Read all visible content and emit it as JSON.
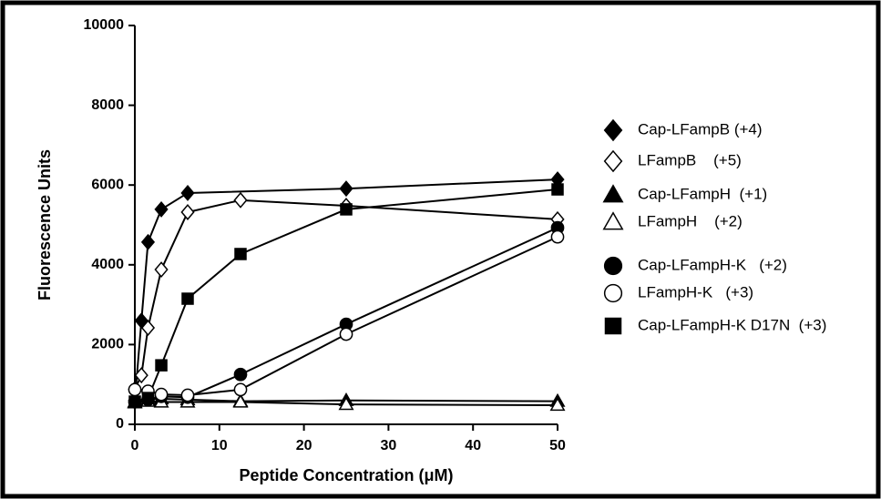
{
  "chart_data": {
    "type": "line",
    "xlabel": "Peptide Concentration (μM)",
    "ylabel": "Fluorescence Units",
    "xlim": [
      0,
      50
    ],
    "xticks": [
      0,
      10,
      20,
      30,
      40,
      50
    ],
    "ylim": [
      0,
      10000
    ],
    "yticks": [
      0,
      2000,
      4000,
      6000,
      8000,
      10000
    ],
    "legend": "right",
    "series": [
      {
        "name": "Cap-LFampB (+4)",
        "color": "#000000",
        "marker": "diamond",
        "marker_fill": "#000000",
        "x": [
          0,
          0.78,
          1.56,
          3.13,
          6.25,
          25,
          50
        ],
        "values": [
          600,
          2600,
          4570,
          5390,
          5800,
          5910,
          6140
        ]
      },
      {
        "name": "LFampB    (+5)",
        "color": "#000000",
        "marker": "diamond",
        "marker_fill": "#ffffff",
        "x": [
          0,
          0.78,
          1.56,
          3.13,
          6.25,
          12.5,
          25,
          50
        ],
        "values": [
          880,
          1230,
          2420,
          3880,
          5320,
          5620,
          5480,
          5140
        ]
      },
      {
        "name": "Cap-LFampH  (+1)",
        "color": "#000000",
        "marker": "triangle",
        "marker_fill": "#000000",
        "x": [
          0,
          1.56,
          3.13,
          6.25,
          12.5,
          25,
          50
        ],
        "values": [
          560,
          620,
          640,
          620,
          580,
          600,
          580
        ]
      },
      {
        "name": "LFampH    (+2)",
        "color": "#000000",
        "marker": "triangle",
        "marker_fill": "#ffffff",
        "x": [
          0,
          1.56,
          3.13,
          6.25,
          12.5,
          25,
          50
        ],
        "values": [
          540,
          580,
          560,
          560,
          560,
          500,
          480
        ]
      },
      {
        "name": "Cap-LFampH-K   (+2)",
        "color": "#000000",
        "marker": "circle",
        "marker_fill": "#000000",
        "x": [
          0,
          1.56,
          3.13,
          6.25,
          12.5,
          25,
          50
        ],
        "values": [
          560,
          620,
          700,
          680,
          1250,
          2510,
          4930
        ]
      },
      {
        "name": "LFampH-K   (+3)",
        "color": "#000000",
        "marker": "circle",
        "marker_fill": "#ffffff",
        "x": [
          0,
          1.56,
          3.13,
          6.25,
          12.5,
          25,
          50
        ],
        "values": [
          870,
          830,
          750,
          730,
          870,
          2260,
          4700
        ]
      },
      {
        "name": "Cap-LFampH-K D17N  (+3)",
        "color": "#000000",
        "marker": "square",
        "marker_fill": "#000000",
        "x": [
          0,
          1.56,
          3.13,
          6.25,
          12.5,
          25,
          50
        ],
        "values": [
          570,
          660,
          1480,
          3150,
          4270,
          5390,
          5890
        ]
      }
    ]
  }
}
